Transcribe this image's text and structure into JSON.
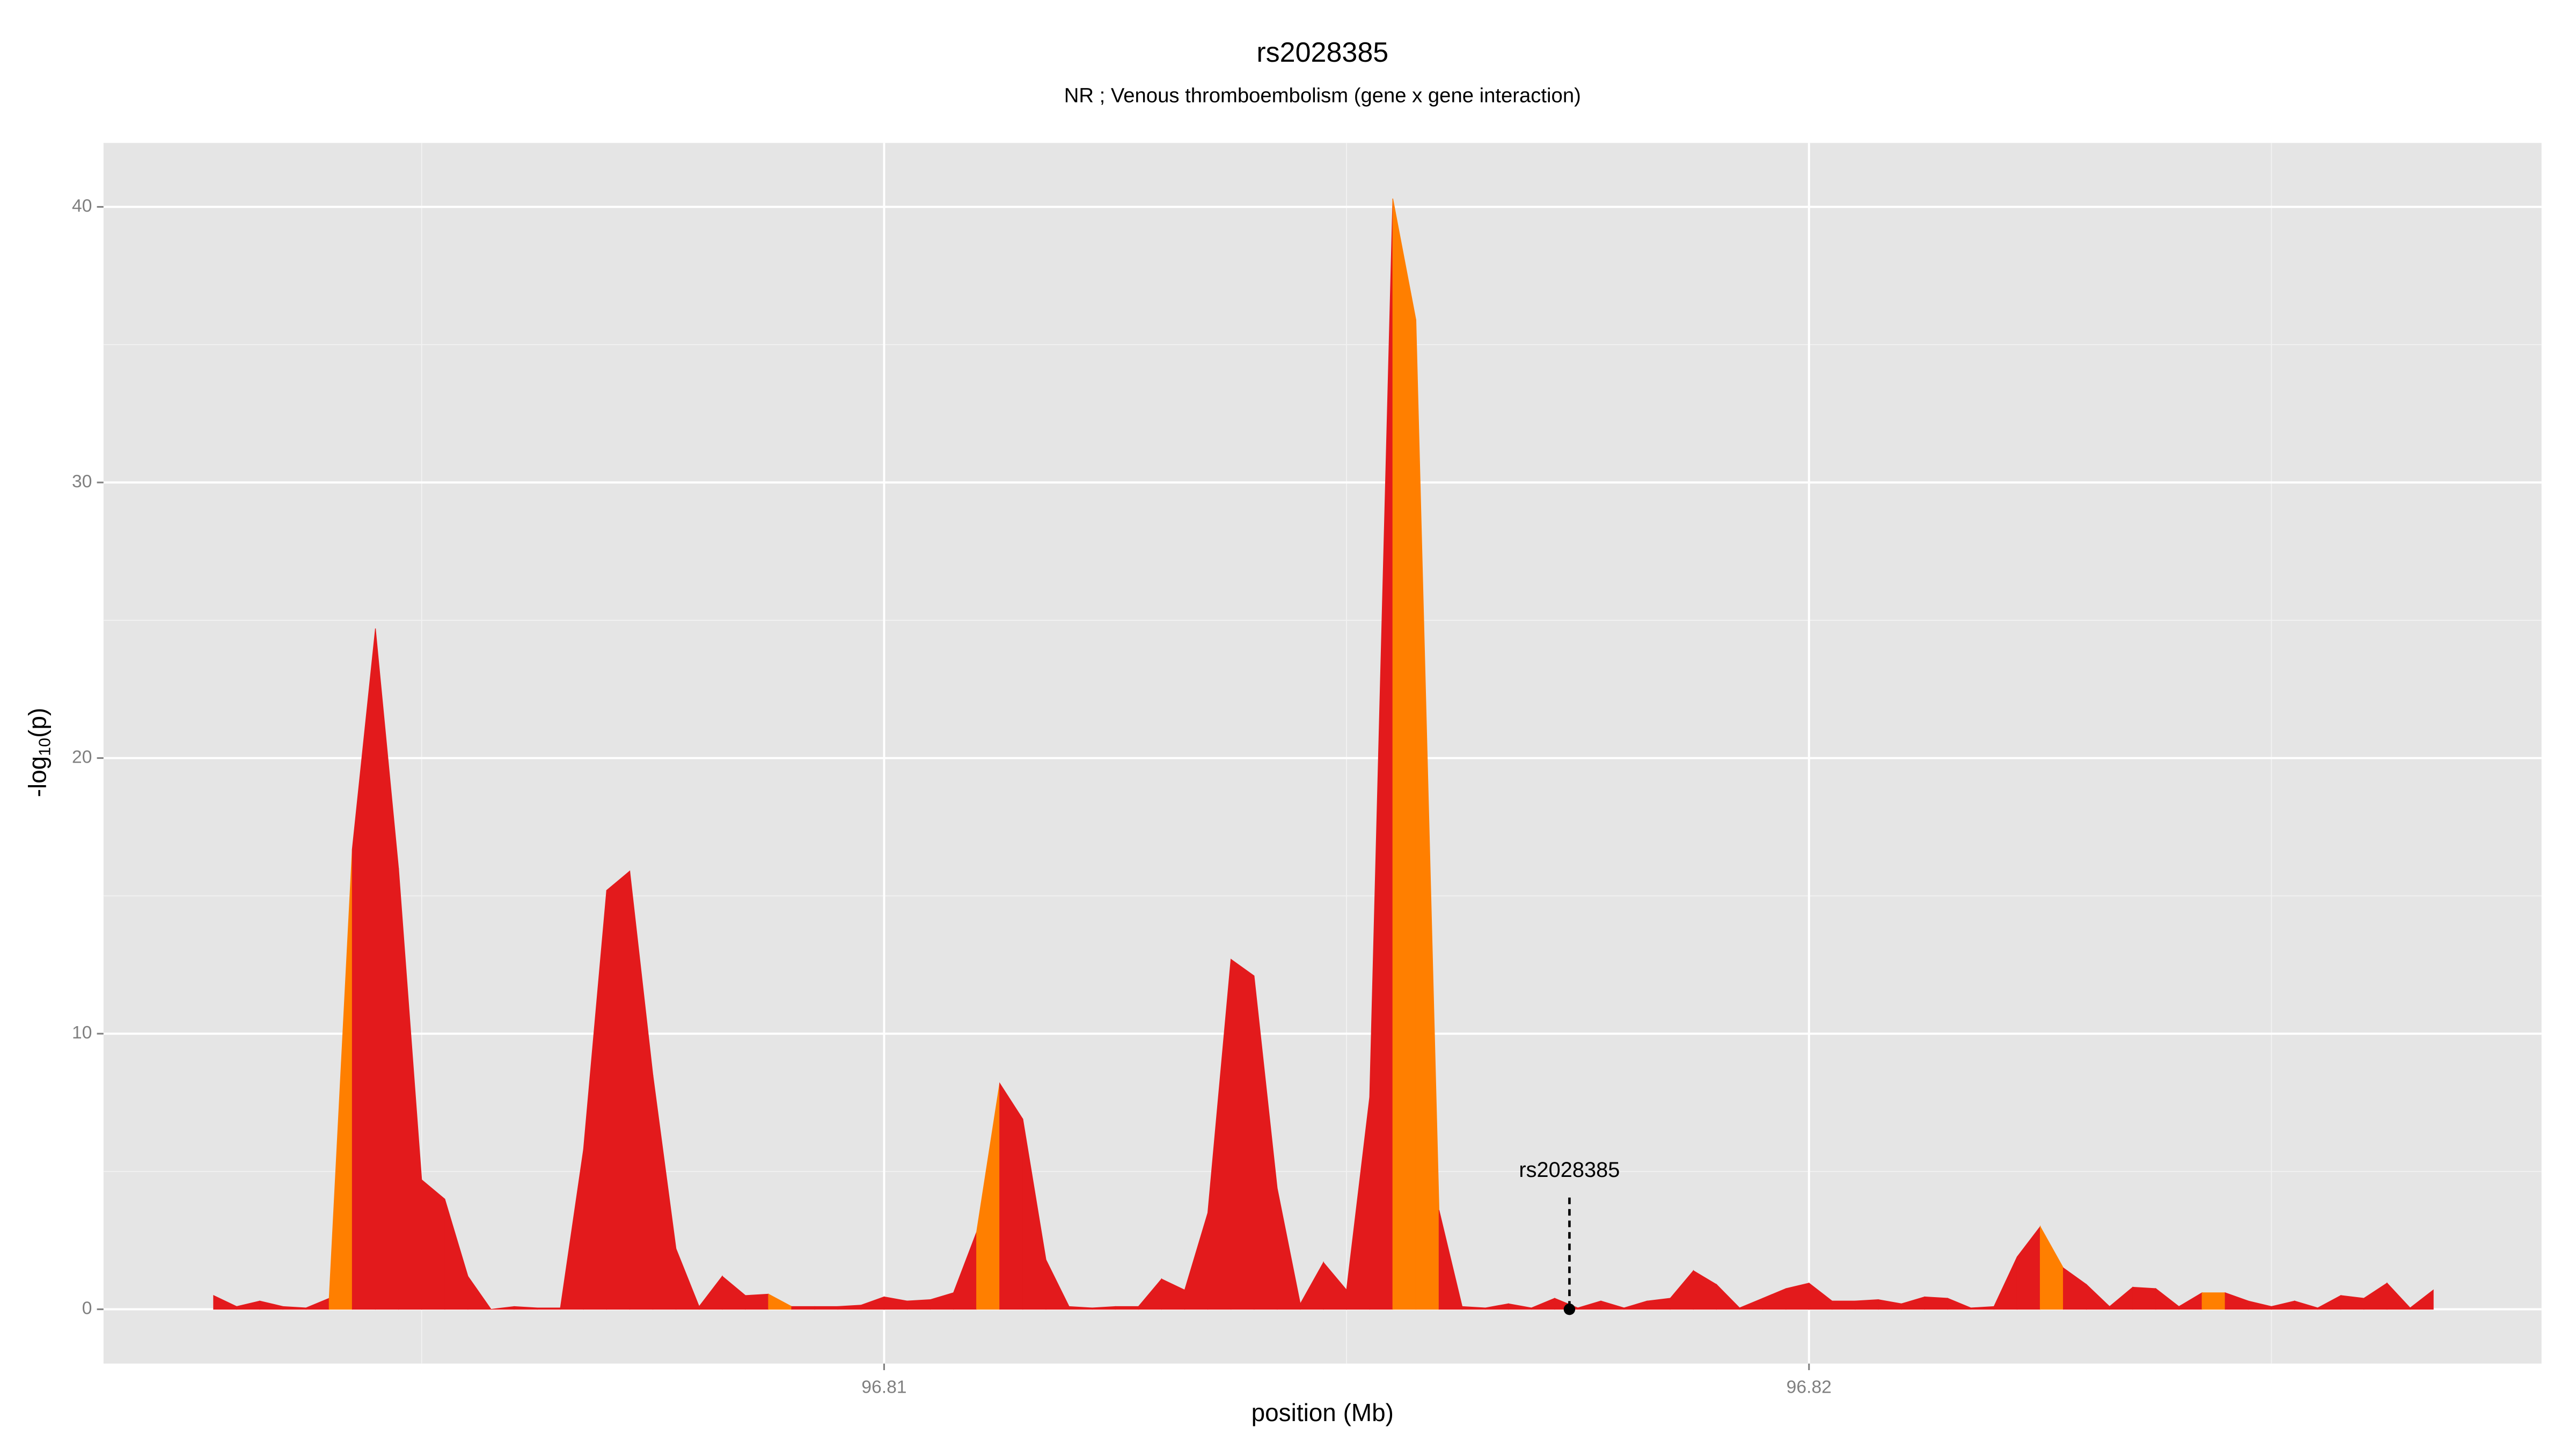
{
  "chart_data": {
    "type": "area",
    "title": "rs2028385",
    "subtitle": "NR ; Venous thromboembolism (gene x gene interaction)",
    "xlabel": "position (Mb)",
    "ylabel": {
      "prefix": "-log",
      "subscript": "10",
      "suffix": "(p)"
    },
    "xlim": [
      96.80156,
      96.82792
    ],
    "ylim": [
      -1.97,
      42.32
    ],
    "xticks": [
      96.81,
      96.82
    ],
    "yticks": [
      0,
      10,
      20,
      30,
      40
    ],
    "x_minor_grid": [
      96.805,
      96.815,
      96.825
    ],
    "y_minor_grid": [
      5,
      15,
      25,
      35
    ],
    "grid": true,
    "x": [
      96.80275,
      96.803,
      96.80325,
      96.8035,
      96.80375,
      96.804,
      96.80425,
      96.8045,
      96.80475,
      96.805,
      96.80525,
      96.8055,
      96.80575,
      96.806,
      96.80625,
      96.8065,
      96.80675,
      96.807,
      96.80725,
      96.8075,
      96.80775,
      96.808,
      96.80825,
      96.8085,
      96.80875,
      96.809,
      96.80925,
      96.8095,
      96.80975,
      96.81,
      96.81025,
      96.8105,
      96.81075,
      96.811,
      96.81125,
      96.8115,
      96.81175,
      96.812,
      96.81225,
      96.8125,
      96.81275,
      96.813,
      96.81325,
      96.8135,
      96.81375,
      96.814,
      96.81425,
      96.8145,
      96.81475,
      96.815,
      96.81525,
      96.8155,
      96.81575,
      96.816,
      96.81625,
      96.8165,
      96.81675,
      96.817,
      96.81725,
      96.8175,
      96.81775,
      96.818,
      96.81825,
      96.8185,
      96.81875,
      96.819,
      96.81925,
      96.8195,
      96.81975,
      96.82,
      96.82025,
      96.8205,
      96.82075,
      96.821,
      96.82125,
      96.8215,
      96.82175,
      96.822,
      96.82225,
      96.8225,
      96.82275,
      96.823,
      96.82325,
      96.8235,
      96.82375,
      96.824,
      96.82425,
      96.8245,
      96.82475,
      96.825,
      96.82525,
      96.8255,
      96.82575,
      96.826,
      96.82625,
      96.8265,
      96.82675
    ],
    "values": [
      0.5,
      0.1,
      0.3,
      0.1,
      0.05,
      0.4,
      16.7,
      24.7,
      16,
      4.7,
      4,
      1.2,
      0,
      0.1,
      0.05,
      0.05,
      5.8,
      15.2,
      15.9,
      8.5,
      2.2,
      0.1,
      1.2,
      0.5,
      0.55,
      0.1,
      0.1,
      0.1,
      0.15,
      0.45,
      0.3,
      0.35,
      0.6,
      2.8,
      8.2,
      6.9,
      1.8,
      0.1,
      0.05,
      0.1,
      0.1,
      1.1,
      0.7,
      3.5,
      12.7,
      12.1,
      4.4,
      0.2,
      1.7,
      0.7,
      7.7,
      40.3,
      35.9,
      3.6,
      0.1,
      0.05,
      0.2,
      0.05,
      0.4,
      0.05,
      0.3,
      0.05,
      0.3,
      0.4,
      1.4,
      0.9,
      0.05,
      0.4,
      0.75,
      0.95,
      0.3,
      0.3,
      0.35,
      0.2,
      0.45,
      0.4,
      0.05,
      0.1,
      1.9,
      3,
      1.5,
      0.9,
      0.1,
      0.8,
      0.75,
      0.1,
      0.6,
      0.6,
      0.3,
      0.1,
      0.3,
      0.05,
      0.5,
      0.4,
      0.95,
      0.05,
      0.7
    ],
    "segment_colors": [
      "#e31a1c",
      "#e31a1c",
      "#e31a1c",
      "#e31a1c",
      "#e31a1c",
      "#ff7f00",
      "#e31a1c",
      "#e31a1c",
      "#e31a1c",
      "#e31a1c",
      "#e31a1c",
      "#e31a1c",
      "#e31a1c",
      "#e31a1c",
      "#e31a1c",
      "#e31a1c",
      "#e31a1c",
      "#e31a1c",
      "#e31a1c",
      "#e31a1c",
      "#e31a1c",
      "#e31a1c",
      "#e31a1c",
      "#e31a1c",
      "#ff7f00",
      "#e31a1c",
      "#e31a1c",
      "#e31a1c",
      "#e31a1c",
      "#e31a1c",
      "#e31a1c",
      "#e31a1c",
      "#e31a1c",
      "#ff7f00",
      "#e31a1c",
      "#e31a1c",
      "#e31a1c",
      "#e31a1c",
      "#e31a1c",
      "#e31a1c",
      "#e31a1c",
      "#e31a1c",
      "#e31a1c",
      "#e31a1c",
      "#e31a1c",
      "#e31a1c",
      "#e31a1c",
      "#e31a1c",
      "#e31a1c",
      "#e31a1c",
      "#e31a1c",
      "#ff7f00",
      "#ff7f00",
      "#e31a1c",
      "#e31a1c",
      "#e31a1c",
      "#e31a1c",
      "#e31a1c",
      "#e31a1c",
      "#e31a1c",
      "#e31a1c",
      "#e31a1c",
      "#e31a1c",
      "#e31a1c",
      "#e31a1c",
      "#e31a1c",
      "#e31a1c",
      "#e31a1c",
      "#e31a1c",
      "#e31a1c",
      "#e31a1c",
      "#e31a1c",
      "#e31a1c",
      "#e31a1c",
      "#e31a1c",
      "#e31a1c",
      "#e31a1c",
      "#e31a1c",
      "#e31a1c",
      "#ff7f00",
      "#e31a1c",
      "#e31a1c",
      "#e31a1c",
      "#e31a1c",
      "#e31a1c",
      "#e31a1c",
      "#ff7f00",
      "#e31a1c",
      "#e31a1c",
      "#e31a1c",
      "#e31a1c",
      "#e31a1c",
      "#e31a1c",
      "#e31a1c",
      "#e31a1c",
      "#e31a1c",
      "#e31a1c"
    ],
    "annotation": {
      "label": "rs2028385",
      "x": 96.81741,
      "y": 0
    }
  }
}
